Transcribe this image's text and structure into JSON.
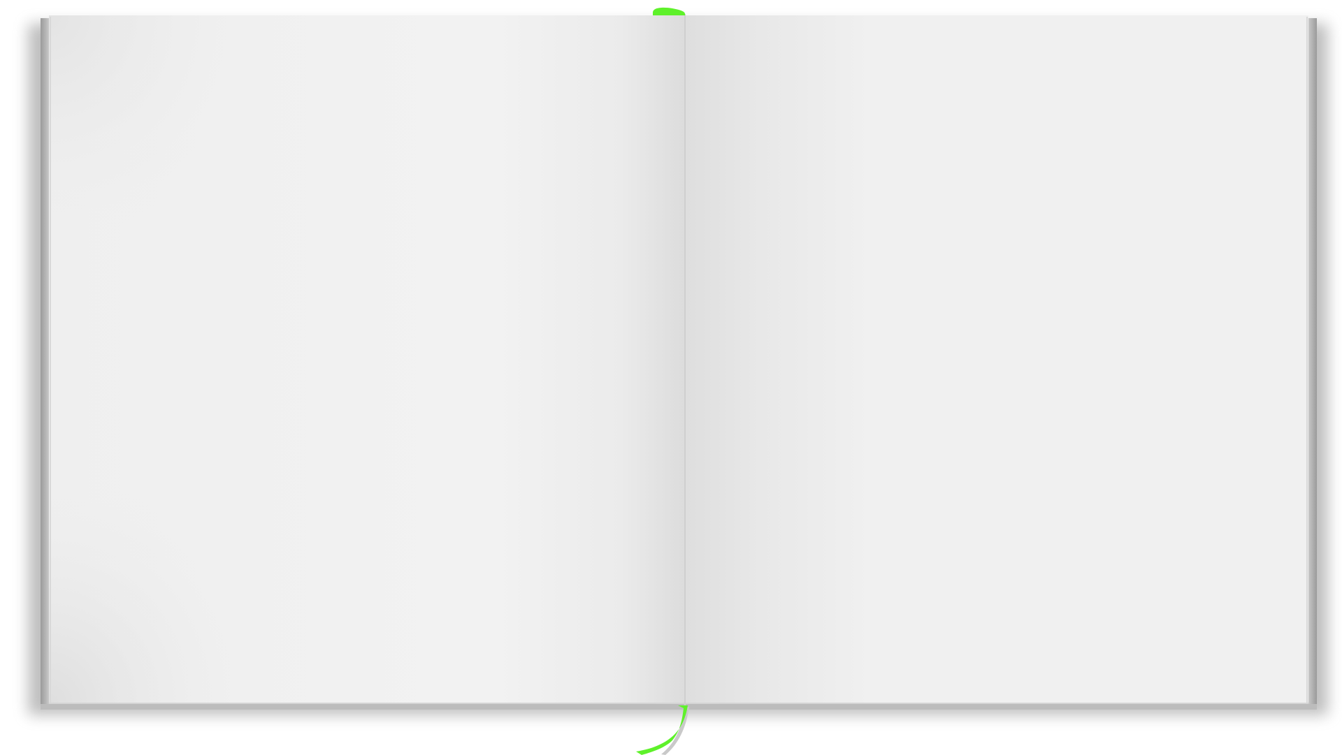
{
  "scene": {
    "description_visible_text": [],
    "colors": {
      "background": "#ffffff",
      "page": "#f1f1f1",
      "page_edge": "#d6d6d6",
      "cover_edge": "#c4c4c4",
      "spine_shadow": "#dcdcdc",
      "bookmark": "#5ef12a",
      "bookmark_shadow": "#c9c9c9"
    },
    "icons": {
      "book": "open-book-icon",
      "bookmark": "ribbon-bookmark-icon"
    }
  }
}
